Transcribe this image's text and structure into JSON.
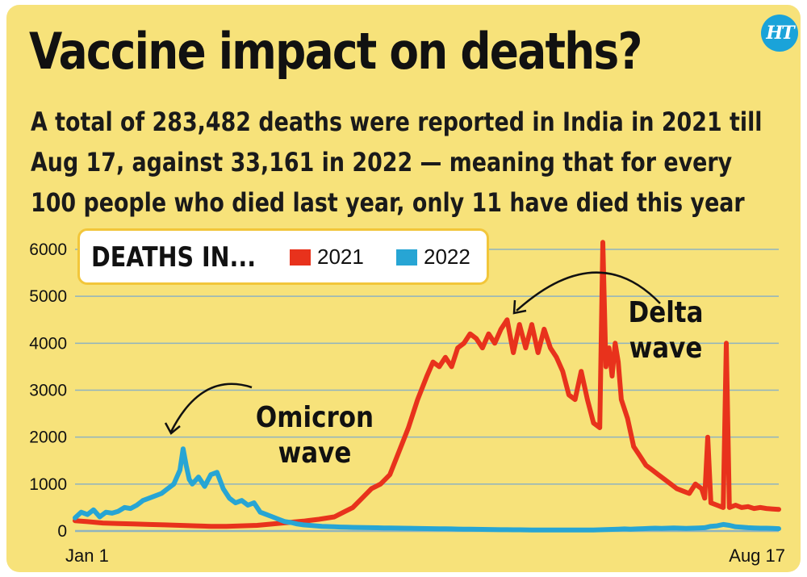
{
  "header": {
    "title": "Vaccine impact on deaths?",
    "subtitle": "A total of 283,482 deaths were reported in India in 2021 till Aug 17, against 33,161 in 2022 — meaning that for every 100 people who died last year, only 11 have died this year",
    "logo_text": "HT"
  },
  "legend": {
    "title": "DEATHS IN...",
    "items": [
      {
        "label": "2021",
        "color": "#e8321c"
      },
      {
        "label": "2022",
        "color": "#27a5d4"
      }
    ]
  },
  "annotations": {
    "omicron_line1": "Omicron",
    "omicron_line2": "wave",
    "delta": "Delta wave"
  },
  "colors": {
    "background": "#f7e27a",
    "grid": "#8fb3bf",
    "series_2021": "#e8321c",
    "series_2022": "#27a5d4"
  },
  "chart_data": {
    "type": "line",
    "title": "Vaccine impact on deaths?",
    "xlabel": "",
    "ylabel": "",
    "x_ticks": [
      "Jan 1",
      "Aug 17"
    ],
    "x_range": [
      1,
      229
    ],
    "ylim": [
      0,
      6000
    ],
    "y_ticks": [
      "0",
      "1000",
      "2000",
      "3000",
      "4000",
      "5000",
      "6000"
    ],
    "grid": true,
    "legend_position": "top-left",
    "series": [
      {
        "name": "2021",
        "color": "#e8321c",
        "points": [
          [
            1,
            220
          ],
          [
            5,
            200
          ],
          [
            10,
            170
          ],
          [
            15,
            160
          ],
          [
            20,
            150
          ],
          [
            25,
            140
          ],
          [
            30,
            130
          ],
          [
            35,
            120
          ],
          [
            40,
            110
          ],
          [
            45,
            100
          ],
          [
            50,
            100
          ],
          [
            55,
            110
          ],
          [
            60,
            120
          ],
          [
            65,
            150
          ],
          [
            70,
            180
          ],
          [
            75,
            210
          ],
          [
            80,
            250
          ],
          [
            85,
            300
          ],
          [
            88,
            400
          ],
          [
            91,
            500
          ],
          [
            94,
            700
          ],
          [
            97,
            900
          ],
          [
            100,
            1000
          ],
          [
            103,
            1200
          ],
          [
            106,
            1700
          ],
          [
            109,
            2200
          ],
          [
            112,
            2800
          ],
          [
            115,
            3300
          ],
          [
            117,
            3600
          ],
          [
            119,
            3500
          ],
          [
            121,
            3700
          ],
          [
            123,
            3500
          ],
          [
            125,
            3900
          ],
          [
            127,
            4000
          ],
          [
            129,
            4200
          ],
          [
            131,
            4100
          ],
          [
            133,
            3900
          ],
          [
            135,
            4200
          ],
          [
            137,
            4000
          ],
          [
            139,
            4300
          ],
          [
            141,
            4500
          ],
          [
            143,
            3800
          ],
          [
            145,
            4400
          ],
          [
            147,
            3900
          ],
          [
            149,
            4400
          ],
          [
            151,
            3800
          ],
          [
            153,
            4300
          ],
          [
            155,
            3900
          ],
          [
            157,
            3700
          ],
          [
            159,
            3400
          ],
          [
            161,
            2900
          ],
          [
            163,
            2800
          ],
          [
            165,
            3400
          ],
          [
            167,
            2800
          ],
          [
            169,
            2300
          ],
          [
            171,
            2200
          ],
          [
            172,
            6150
          ],
          [
            173,
            3500
          ],
          [
            174,
            3900
          ],
          [
            175,
            3300
          ],
          [
            176,
            4000
          ],
          [
            177,
            3600
          ],
          [
            178,
            2800
          ],
          [
            180,
            2400
          ],
          [
            182,
            1800
          ],
          [
            184,
            1600
          ],
          [
            186,
            1400
          ],
          [
            188,
            1300
          ],
          [
            190,
            1200
          ],
          [
            192,
            1100
          ],
          [
            194,
            1000
          ],
          [
            196,
            900
          ],
          [
            198,
            850
          ],
          [
            200,
            800
          ],
          [
            202,
            1000
          ],
          [
            204,
            900
          ],
          [
            205,
            700
          ],
          [
            206,
            2000
          ],
          [
            207,
            600
          ],
          [
            209,
            550
          ],
          [
            211,
            500
          ],
          [
            212,
            4000
          ],
          [
            213,
            500
          ],
          [
            215,
            550
          ],
          [
            217,
            500
          ],
          [
            219,
            520
          ],
          [
            221,
            480
          ],
          [
            223,
            500
          ],
          [
            225,
            480
          ],
          [
            227,
            470
          ],
          [
            229,
            460
          ]
        ]
      },
      {
        "name": "2022",
        "color": "#27a5d4",
        "points": [
          [
            1,
            280
          ],
          [
            3,
            400
          ],
          [
            5,
            350
          ],
          [
            7,
            450
          ],
          [
            9,
            300
          ],
          [
            11,
            400
          ],
          [
            13,
            380
          ],
          [
            15,
            420
          ],
          [
            17,
            500
          ],
          [
            19,
            480
          ],
          [
            21,
            550
          ],
          [
            23,
            650
          ],
          [
            25,
            700
          ],
          [
            27,
            750
          ],
          [
            29,
            800
          ],
          [
            31,
            900
          ],
          [
            33,
            1000
          ],
          [
            35,
            1300
          ],
          [
            36,
            1750
          ],
          [
            37,
            1400
          ],
          [
            38,
            1100
          ],
          [
            39,
            1000
          ],
          [
            41,
            1150
          ],
          [
            43,
            950
          ],
          [
            45,
            1200
          ],
          [
            47,
            1250
          ],
          [
            49,
            900
          ],
          [
            51,
            700
          ],
          [
            53,
            600
          ],
          [
            55,
            650
          ],
          [
            57,
            550
          ],
          [
            59,
            600
          ],
          [
            61,
            400
          ],
          [
            63,
            350
          ],
          [
            65,
            300
          ],
          [
            67,
            250
          ],
          [
            69,
            200
          ],
          [
            71,
            180
          ],
          [
            73,
            150
          ],
          [
            75,
            130
          ],
          [
            77,
            120
          ],
          [
            79,
            110
          ],
          [
            81,
            100
          ],
          [
            83,
            95
          ],
          [
            85,
            90
          ],
          [
            87,
            85
          ],
          [
            89,
            80
          ],
          [
            91,
            78
          ],
          [
            93,
            75
          ],
          [
            95,
            72
          ],
          [
            97,
            70
          ],
          [
            99,
            68
          ],
          [
            101,
            66
          ],
          [
            103,
            64
          ],
          [
            105,
            62
          ],
          [
            107,
            60
          ],
          [
            109,
            58
          ],
          [
            111,
            56
          ],
          [
            113,
            54
          ],
          [
            115,
            52
          ],
          [
            117,
            50
          ],
          [
            119,
            48
          ],
          [
            121,
            46
          ],
          [
            123,
            44
          ],
          [
            125,
            42
          ],
          [
            127,
            40
          ],
          [
            129,
            38
          ],
          [
            131,
            36
          ],
          [
            133,
            34
          ],
          [
            135,
            32
          ],
          [
            137,
            30
          ],
          [
            139,
            28
          ],
          [
            141,
            27
          ],
          [
            143,
            26
          ],
          [
            145,
            25
          ],
          [
            147,
            24
          ],
          [
            149,
            23
          ],
          [
            151,
            22
          ],
          [
            153,
            21
          ],
          [
            155,
            20
          ],
          [
            157,
            20
          ],
          [
            159,
            20
          ],
          [
            161,
            20
          ],
          [
            163,
            20
          ],
          [
            165,
            20
          ],
          [
            167,
            20
          ],
          [
            169,
            22
          ],
          [
            171,
            25
          ],
          [
            173,
            30
          ],
          [
            175,
            35
          ],
          [
            177,
            40
          ],
          [
            179,
            45
          ],
          [
            181,
            40
          ],
          [
            183,
            45
          ],
          [
            185,
            50
          ],
          [
            187,
            55
          ],
          [
            189,
            60
          ],
          [
            191,
            55
          ],
          [
            193,
            60
          ],
          [
            195,
            65
          ],
          [
            197,
            60
          ],
          [
            199,
            55
          ],
          [
            201,
            60
          ],
          [
            203,
            65
          ],
          [
            205,
            70
          ],
          [
            207,
            100
          ],
          [
            209,
            110
          ],
          [
            211,
            140
          ],
          [
            213,
            120
          ],
          [
            215,
            90
          ],
          [
            217,
            80
          ],
          [
            219,
            70
          ],
          [
            221,
            65
          ],
          [
            223,
            60
          ],
          [
            225,
            60
          ],
          [
            227,
            55
          ],
          [
            229,
            50
          ]
        ]
      }
    ]
  }
}
